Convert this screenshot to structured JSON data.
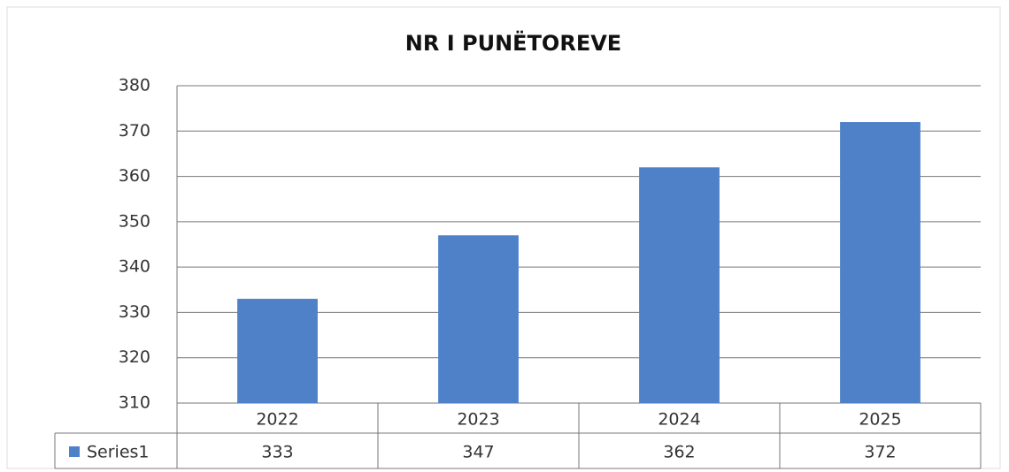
{
  "chart_data": {
    "type": "bar",
    "title": "NR I PUNËTOREVE",
    "categories": [
      "2022",
      "2023",
      "2024",
      "2025"
    ],
    "series": [
      {
        "name": "Series1",
        "color": "#4f81c9",
        "values": [
          333,
          347,
          362,
          372
        ]
      }
    ],
    "ylim": [
      310,
      380
    ],
    "yticks": [
      310,
      320,
      330,
      340,
      350,
      360,
      370,
      380
    ],
    "grid": true,
    "data_table": true
  }
}
